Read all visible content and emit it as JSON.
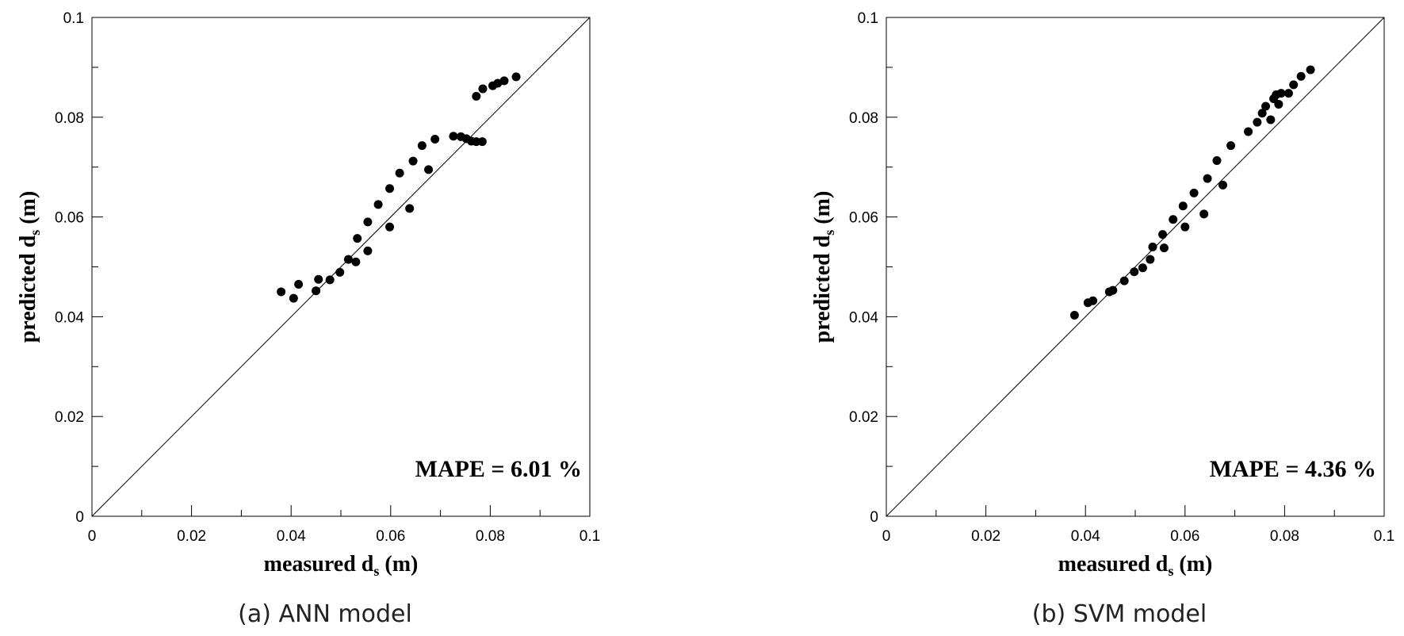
{
  "chart_data": [
    {
      "type": "scatter",
      "caption": "(a) ANN model",
      "xlabel_main": "measured d",
      "xlabel_sub": "s",
      "xlabel_unit": " (m)",
      "ylabel_main": "predicted d",
      "ylabel_sub": "s",
      "ylabel_unit": " (m)",
      "xlim": [
        0,
        0.1
      ],
      "ylim": [
        0,
        0.1
      ],
      "major_ticks": [
        0,
        0.02,
        0.04,
        0.06,
        0.08,
        0.1
      ],
      "tick_labels": [
        "0",
        "0.02",
        "0.04",
        "0.06",
        "0.08",
        "0.1"
      ],
      "annotation": "MAPE = 6.01 %",
      "reference_line": "y = x",
      "points": [
        [
          0.038,
          0.045
        ],
        [
          0.0405,
          0.0437
        ],
        [
          0.0415,
          0.0465
        ],
        [
          0.045,
          0.0452
        ],
        [
          0.0455,
          0.0475
        ],
        [
          0.0478,
          0.0474
        ],
        [
          0.0498,
          0.0489
        ],
        [
          0.0515,
          0.0515
        ],
        [
          0.053,
          0.051
        ],
        [
          0.0533,
          0.0557
        ],
        [
          0.0554,
          0.0532
        ],
        [
          0.0554,
          0.059
        ],
        [
          0.0575,
          0.0625
        ],
        [
          0.0598,
          0.058
        ],
        [
          0.0598,
          0.0657
        ],
        [
          0.0618,
          0.0688
        ],
        [
          0.0638,
          0.0617
        ],
        [
          0.0645,
          0.0712
        ],
        [
          0.0663,
          0.0743
        ],
        [
          0.0676,
          0.0695
        ],
        [
          0.0689,
          0.0756
        ],
        [
          0.0726,
          0.0762
        ],
        [
          0.0741,
          0.0761
        ],
        [
          0.0752,
          0.0757
        ],
        [
          0.0762,
          0.0752
        ],
        [
          0.0772,
          0.0751
        ],
        [
          0.0784,
          0.0751
        ],
        [
          0.0772,
          0.0842
        ],
        [
          0.0785,
          0.0857
        ],
        [
          0.0805,
          0.0863
        ],
        [
          0.0815,
          0.0868
        ],
        [
          0.0828,
          0.0873
        ],
        [
          0.0852,
          0.0881
        ]
      ]
    },
    {
      "type": "scatter",
      "caption": "(b) SVM model",
      "xlabel_main": "measured d",
      "xlabel_sub": "s",
      "xlabel_unit": " (m)",
      "ylabel_main": "predicted d",
      "ylabel_sub": "s",
      "ylabel_unit": " (m)",
      "xlim": [
        0,
        0.1
      ],
      "ylim": [
        0,
        0.1
      ],
      "major_ticks": [
        0,
        0.02,
        0.04,
        0.06,
        0.08,
        0.1
      ],
      "tick_labels": [
        "0",
        "0.02",
        "0.04",
        "0.06",
        "0.08",
        "0.1"
      ],
      "annotation": "MAPE = 4.36 %",
      "reference_line": "y = x",
      "points": [
        [
          0.0378,
          0.0403
        ],
        [
          0.0405,
          0.0428
        ],
        [
          0.0415,
          0.0432
        ],
        [
          0.0448,
          0.045
        ],
        [
          0.0455,
          0.0453
        ],
        [
          0.0478,
          0.0472
        ],
        [
          0.0498,
          0.049
        ],
        [
          0.0515,
          0.0498
        ],
        [
          0.053,
          0.0515
        ],
        [
          0.0535,
          0.054
        ],
        [
          0.0555,
          0.0565
        ],
        [
          0.0558,
          0.0538
        ],
        [
          0.0576,
          0.0595
        ],
        [
          0.0596,
          0.0622
        ],
        [
          0.06,
          0.058
        ],
        [
          0.0618,
          0.0648
        ],
        [
          0.0638,
          0.0606
        ],
        [
          0.0645,
          0.0677
        ],
        [
          0.0664,
          0.0713
        ],
        [
          0.0676,
          0.0664
        ],
        [
          0.0692,
          0.0743
        ],
        [
          0.0727,
          0.0771
        ],
        [
          0.0745,
          0.079
        ],
        [
          0.0755,
          0.0808
        ],
        [
          0.0762,
          0.0822
        ],
        [
          0.0772,
          0.0795
        ],
        [
          0.0778,
          0.0837
        ],
        [
          0.0783,
          0.0845
        ],
        [
          0.0788,
          0.0826
        ],
        [
          0.0793,
          0.0848
        ],
        [
          0.0808,
          0.0848
        ],
        [
          0.0818,
          0.0865
        ],
        [
          0.0833,
          0.0882
        ],
        [
          0.0852,
          0.0895
        ]
      ]
    }
  ]
}
